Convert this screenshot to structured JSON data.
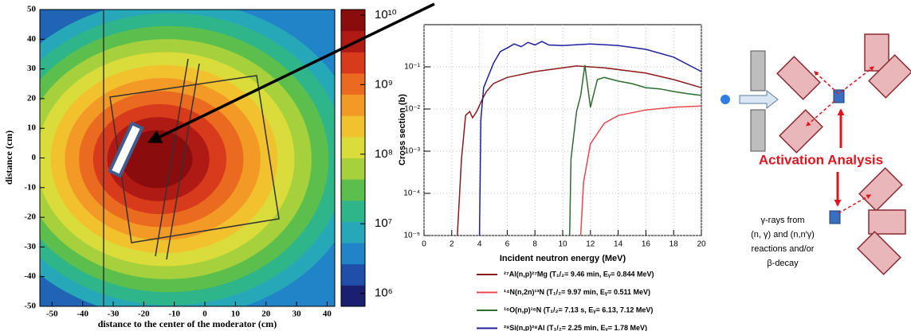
{
  "chart_data": [
    {
      "type": "heatmap",
      "xlabel": "distance to the center of the moderator (cm)",
      "ylabel": "distance (cm)",
      "xlim": [
        -54,
        42.5
      ],
      "xticks": [
        -50,
        -40,
        -30,
        -20,
        -10,
        0,
        10,
        20,
        30,
        40
      ],
      "ylim": [
        -50,
        50
      ],
      "yticks": [
        -50,
        -40,
        -30,
        -20,
        -10,
        0,
        10,
        20,
        30,
        40,
        50
      ],
      "log_z": true,
      "zlim": [
        650000,
        12000000000
      ],
      "zticks": [
        {
          "value": 1000000,
          "label": "10⁶"
        },
        {
          "value": 10000000,
          "label": "10⁷"
        },
        {
          "value": 100000000,
          "label": "10⁸"
        },
        {
          "value": 1000000000,
          "label": "10⁹"
        },
        {
          "value": 10000000000,
          "label": "10¹⁰"
        }
      ],
      "colormap": [
        "#1a1f6e",
        "#1f4fa8",
        "#2184c9",
        "#27a8b8",
        "#2fb58a",
        "#5cbf4c",
        "#a6d13c",
        "#d9dc3a",
        "#f2c12e",
        "#f39a26",
        "#ea6a1f",
        "#d83a1c",
        "#b01a14",
        "#8a0c0c"
      ]
    },
    {
      "type": "line",
      "xlabel": "Incident neutron energy (MeV)",
      "ylabel": "Cross section (b)",
      "xlim": [
        0,
        20
      ],
      "xticks": [
        0,
        2,
        4,
        6,
        8,
        10,
        12,
        14,
        16,
        18,
        20
      ],
      "log_y": true,
      "ylim": [
        1e-05,
        1
      ],
      "yticks": [
        {
          "value": 1e-05,
          "label": "10⁻⁵"
        },
        {
          "value": 0.0001,
          "label": "10⁻⁴"
        },
        {
          "value": 0.001,
          "label": "10⁻³"
        },
        {
          "value": 0.01,
          "label": "10⁻²"
        },
        {
          "value": 0.1,
          "label": "10⁻¹"
        }
      ],
      "grid": true,
      "series": [
        {
          "name": "²⁷Al(n,p)²⁷Mg (T₁/₂= 9.46 min, Eᵧ= 0.844 MeV)",
          "color": "#8b1a1a",
          "x": [
            2.4,
            2.7,
            3.0,
            3.3,
            3.5,
            3.8,
            4.2,
            4.5,
            5,
            6,
            8,
            10,
            11,
            13,
            16,
            18,
            20
          ],
          "values": [
            1e-05,
            0.00065,
            0.0071,
            0.0087,
            0.0062,
            0.0087,
            0.017,
            0.026,
            0.04,
            0.056,
            0.077,
            0.095,
            0.105,
            0.095,
            0.071,
            0.05,
            0.032
          ]
        },
        {
          "name": "¹⁴N(n,2n)¹³N (T₁/₂= 9.97 min, Eᵧ= 0.511 MeV)",
          "color": "#e8474f",
          "x": [
            11.3,
            11.5,
            12,
            13,
            14,
            16,
            18,
            20
          ],
          "values": [
            1e-05,
            0.00018,
            0.0015,
            0.0046,
            0.007,
            0.0095,
            0.011,
            0.0118
          ]
        },
        {
          "name": "¹⁶O(n,p)¹⁶N (T₁/₂= 7.13 s, Eᵧ= 6.13, 7.12 MeV)",
          "color": "#2e6b2e",
          "x": [
            10.5,
            10.6,
            10.8,
            11,
            11.3,
            11.6,
            12,
            12.5,
            13,
            14,
            15,
            16,
            17,
            18,
            19,
            20
          ],
          "values": [
            1e-05,
            0.00065,
            0.0024,
            0.0087,
            0.021,
            0.11,
            0.011,
            0.05,
            0.056,
            0.046,
            0.04,
            0.032,
            0.03,
            0.026,
            0.023,
            0.021
          ]
        },
        {
          "name": "²⁸Si(n,p)²⁸Al (T₁/₂= 2.25 min, Eᵧ= 1.78 MeV)",
          "color": "#1f1f9e",
          "x": [
            4,
            4.1,
            4.3,
            5,
            5.5,
            6,
            6.5,
            7,
            7.5,
            8,
            8.5,
            9,
            10,
            12,
            14,
            16,
            18,
            20
          ],
          "values": [
            1e-05,
            0.0056,
            0.032,
            0.12,
            0.23,
            0.28,
            0.35,
            0.3,
            0.38,
            0.33,
            0.4,
            0.33,
            0.32,
            0.35,
            0.32,
            0.26,
            0.17,
            0.077
          ]
        }
      ]
    }
  ],
  "diagram": {
    "label": "Activation Analysis",
    "note_lines": [
      "γ-rays from",
      "(n, γ) and (n,n′γ)",
      "reactions and/or",
      "β-decay"
    ]
  }
}
